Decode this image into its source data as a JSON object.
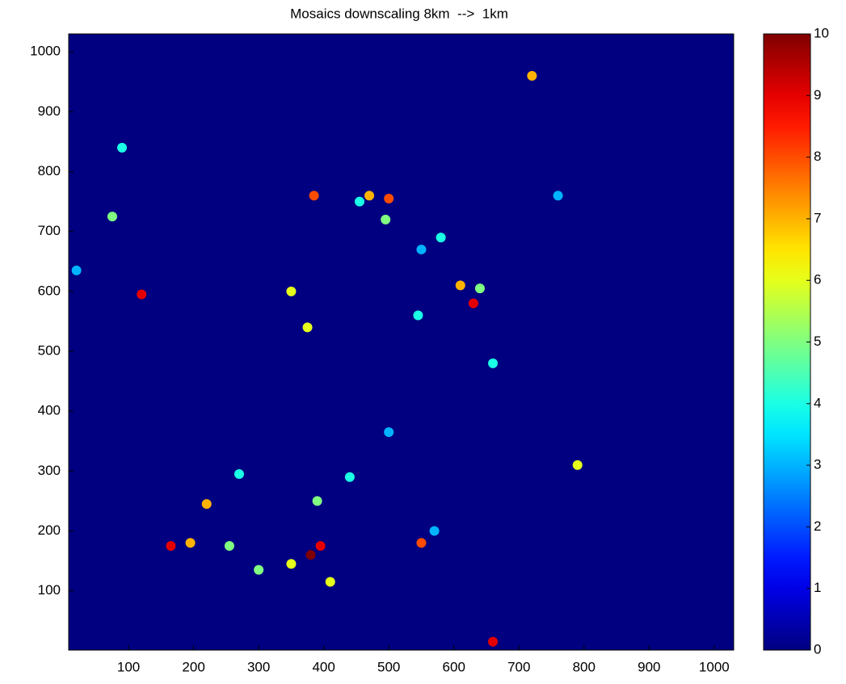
{
  "chart_data": {
    "type": "heatmap",
    "title": "Mosaics downscaling 8km  -->  1km",
    "colormap": "jet",
    "x": [
      385,
      470,
      495,
      630,
      610,
      545,
      350,
      375,
      165,
      195,
      380,
      395,
      350,
      220,
      550,
      300,
      255,
      660,
      720,
      660,
      790,
      120,
      75,
      390,
      270,
      500,
      440,
      570,
      640,
      580,
      500,
      410,
      760,
      455,
      550,
      90,
      20
    ],
    "y": [
      760,
      760,
      720,
      580,
      610,
      560,
      600,
      540,
      175,
      180,
      160,
      175,
      145,
      245,
      180,
      135,
      175,
      15,
      960,
      480,
      310,
      595,
      725,
      250,
      295,
      365,
      290,
      200,
      605,
      690,
      755,
      115,
      760,
      750,
      670,
      840,
      635
    ],
    "values": [
      8,
      7,
      5,
      9,
      7,
      4,
      6,
      6,
      9,
      7,
      10,
      9,
      6,
      7,
      8,
      5,
      5,
      9,
      7,
      4,
      6,
      9,
      5,
      5,
      4,
      3,
      4,
      3,
      5,
      4,
      8,
      6,
      3,
      4,
      3,
      4,
      3
    ],
    "xlim": [
      8,
      1030
    ],
    "xticks": [
      100,
      200,
      300,
      400,
      500,
      600,
      700,
      800,
      900,
      1000
    ],
    "ylim": [
      1,
      1030
    ],
    "yticks": [
      100,
      200,
      300,
      400,
      500,
      600,
      700,
      800,
      900,
      1000
    ],
    "clim": [
      0,
      10
    ],
    "cticks": [
      0,
      1,
      2,
      3,
      4,
      5,
      6,
      7,
      8,
      9,
      10
    ]
  }
}
